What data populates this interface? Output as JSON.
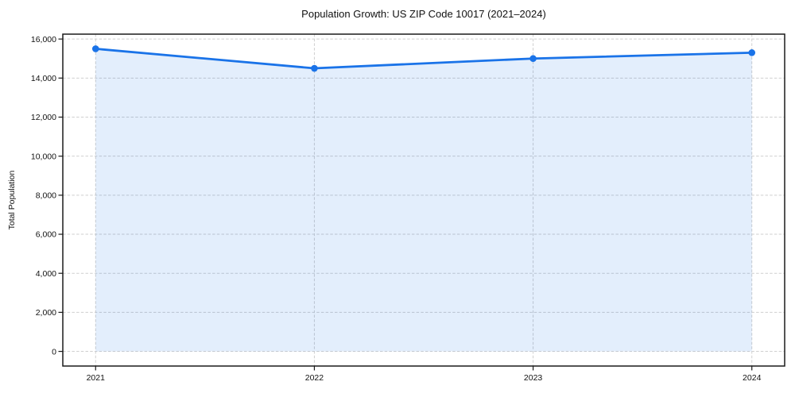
{
  "chart_data": {
    "type": "line",
    "title": "Population Growth: US ZIP Code 10017 (2021–2024)",
    "xlabel": "",
    "ylabel": "Total Population",
    "categories": [
      "2021",
      "2022",
      "2023",
      "2024"
    ],
    "x": [
      2021,
      2022,
      2023,
      2024
    ],
    "series": [
      {
        "name": "Total Population",
        "values": [
          15500,
          14500,
          15000,
          15300
        ]
      }
    ],
    "yticks": [
      0,
      2000,
      4000,
      6000,
      8000,
      10000,
      12000,
      14000,
      16000
    ],
    "ytick_labels": [
      "0",
      "2,000",
      "4,000",
      "6,000",
      "8,000",
      "10,000",
      "12,000",
      "14,000",
      "16,000"
    ],
    "ylim": [
      -750,
      16250
    ],
    "xlim": [
      2020.85,
      2024.15
    ],
    "fill_to_zero": true,
    "grid": true,
    "grid_style": "dashed",
    "legend_position": "none",
    "colors": {
      "line": "#1a73e8",
      "marker": "#1a73e8",
      "fill": "rgba(26,115,232,0.12)",
      "grid": "#cfcfcf",
      "spine": "#1a1a1a",
      "tick": "#1a1a1a",
      "text": "#111111",
      "background": "#ffffff"
    }
  }
}
